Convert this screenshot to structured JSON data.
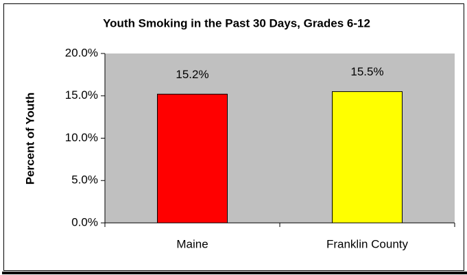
{
  "chart_data": {
    "type": "bar",
    "title": "Youth Smoking in the Past 30 Days, Grades 6-12",
    "y_label": "Percent of Youth",
    "categories": [
      "Maine",
      "Franklin County"
    ],
    "values": [
      15.2,
      15.5
    ],
    "value_labels": [
      "15.2%",
      "15.5%"
    ],
    "colors": [
      "#ff0000",
      "#ffff00"
    ],
    "plot_color": "#c0c0c0",
    "ylim": [
      0,
      20
    ],
    "yticks": [
      {
        "value": 0,
        "label": "0.0%"
      },
      {
        "value": 5,
        "label": "5.0%"
      },
      {
        "value": 10,
        "label": "10.0%"
      },
      {
        "value": 15,
        "label": "15.0%"
      },
      {
        "value": 20,
        "label": "20.0%"
      }
    ],
    "grid": false
  }
}
